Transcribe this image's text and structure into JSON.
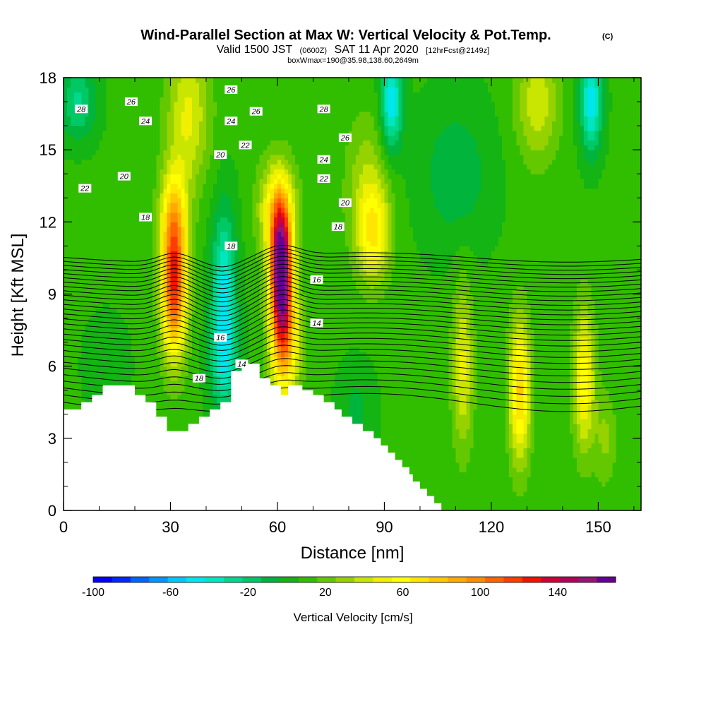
{
  "chart_data": {
    "type": "heatmap",
    "title": "Wind-Parallel Section at Max W: Vertical Velocity & Pot.Temp.",
    "title_mark": "(C)",
    "subtitle_parts": [
      "Valid 1500 JST",
      "(0600Z)",
      "SAT 11 Apr 2020",
      "[12hrFcst@2149z]"
    ],
    "subtitle2": "boxWmax=190@35.98,138.60,2649m",
    "xlabel": "Distance [nm]",
    "ylabel": "Height [Kft MSL]",
    "xlim": [
      0,
      162
    ],
    "ylim": [
      0,
      18
    ],
    "x_ticks": [
      0,
      30,
      60,
      90,
      120,
      150
    ],
    "x_tick_labels": [
      "0",
      "30",
      "60",
      "90",
      "120",
      "150"
    ],
    "y_ticks": [
      0,
      3,
      6,
      9,
      12,
      15,
      18
    ],
    "y_tick_labels": [
      "0",
      "3",
      "6",
      "9",
      "12",
      "15",
      "18"
    ],
    "grid": false,
    "colorbar": {
      "title": "Vertical Velocity [cm/s]",
      "min": -100,
      "max": 170,
      "step": 10,
      "tick_values": [
        -100,
        -60,
        -20,
        20,
        60,
        100,
        140
      ],
      "tick_labels": [
        "-100",
        "-60",
        "-20",
        "20",
        "60",
        "100",
        "140"
      ],
      "colors": [
        "#0000ff",
        "#0028ff",
        "#0064ff",
        "#0096ff",
        "#00c8ff",
        "#00e6f0",
        "#00e6c0",
        "#00d890",
        "#00c864",
        "#00b43c",
        "#14b414",
        "#32be00",
        "#64c800",
        "#96d200",
        "#c8e600",
        "#f0f000",
        "#ffff00",
        "#ffe600",
        "#ffc800",
        "#ffaa00",
        "#ff8c00",
        "#ff6400",
        "#ff3c00",
        "#f01400",
        "#d20032",
        "#b4005a",
        "#961478",
        "#640096"
      ]
    },
    "terrain": [
      [
        0,
        4.2
      ],
      [
        5,
        4.2
      ],
      [
        5,
        4.5
      ],
      [
        8,
        4.5
      ],
      [
        8,
        4.8
      ],
      [
        11,
        4.8
      ],
      [
        11,
        5.2
      ],
      [
        20,
        5.2
      ],
      [
        20,
        4.8
      ],
      [
        23,
        4.8
      ],
      [
        23,
        4.5
      ],
      [
        26,
        4.5
      ],
      [
        26,
        3.9
      ],
      [
        29,
        3.9
      ],
      [
        29,
        3.3
      ],
      [
        35,
        3.3
      ],
      [
        35,
        3.6
      ],
      [
        38,
        3.6
      ],
      [
        38,
        3.9
      ],
      [
        41,
        3.9
      ],
      [
        41,
        4.2
      ],
      [
        44,
        4.2
      ],
      [
        44,
        4.5
      ],
      [
        47,
        4.5
      ],
      [
        47,
        5.8
      ],
      [
        50,
        5.8
      ],
      [
        50,
        6.1
      ],
      [
        55,
        6.1
      ],
      [
        55,
        5.5
      ],
      [
        58,
        5.5
      ],
      [
        58,
        5.2
      ],
      [
        61,
        5.2
      ],
      [
        61,
        4.8
      ],
      [
        63,
        4.8
      ],
      [
        63,
        5.2
      ],
      [
        67,
        5.2
      ],
      [
        67,
        5.0
      ],
      [
        70,
        5.0
      ],
      [
        70,
        4.8
      ],
      [
        73,
        4.8
      ],
      [
        73,
        4.5
      ],
      [
        76,
        4.5
      ],
      [
        76,
        4.2
      ],
      [
        78,
        4.2
      ],
      [
        78,
        3.9
      ],
      [
        81,
        3.9
      ],
      [
        81,
        3.6
      ],
      [
        84,
        3.6
      ],
      [
        84,
        3.3
      ],
      [
        87,
        3.3
      ],
      [
        87,
        3.0
      ],
      [
        89,
        3.0
      ],
      [
        89,
        2.7
      ],
      [
        91,
        2.7
      ],
      [
        91,
        2.4
      ],
      [
        93,
        2.4
      ],
      [
        93,
        2.1
      ],
      [
        95,
        2.1
      ],
      [
        95,
        1.8
      ],
      [
        97,
        1.8
      ],
      [
        97,
        1.5
      ],
      [
        98,
        1.5
      ],
      [
        98,
        1.2
      ],
      [
        100,
        1.2
      ],
      [
        100,
        0.9
      ],
      [
        102,
        0.9
      ],
      [
        102,
        0.6
      ],
      [
        104,
        0.6
      ],
      [
        104,
        0.3
      ],
      [
        106,
        0.3
      ],
      [
        106,
        0
      ],
      [
        0,
        0
      ]
    ],
    "series": [
      {
        "name": "w_cells",
        "values": [
          [
            31,
            9.5,
            3.5,
            3.0,
            120
          ],
          [
            31,
            12.5,
            4.0,
            2.0,
            40
          ],
          [
            61,
            10.0,
            3.0,
            2.5,
            165
          ],
          [
            60,
            12.5,
            5.0,
            2.0,
            60
          ],
          [
            62,
            7.0,
            4.0,
            2.5,
            80
          ],
          [
            87,
            11.5,
            4.5,
            2.0,
            50
          ],
          [
            85,
            13.5,
            6.0,
            3.0,
            25
          ],
          [
            112,
            6.0,
            3.0,
            3.5,
            40
          ],
          [
            128,
            5.0,
            3.0,
            3.0,
            70
          ],
          [
            146,
            5.5,
            3.0,
            3.0,
            55
          ],
          [
            152,
            3.0,
            3.0,
            2.0,
            20
          ],
          [
            35,
            16.5,
            6.0,
            3.0,
            40
          ],
          [
            133,
            17.0,
            6.0,
            2.5,
            35
          ],
          [
            45,
            9.0,
            3.5,
            3.5,
            -55
          ],
          [
            45,
            6.0,
            4.0,
            2.0,
            -30
          ],
          [
            92,
            17.0,
            3.0,
            2.0,
            -60
          ],
          [
            148,
            17.0,
            3.0,
            2.0,
            -60
          ],
          [
            4,
            17.0,
            5.0,
            1.5,
            -35
          ],
          [
            82,
            4.0,
            5.0,
            2.0,
            -15
          ],
          [
            12,
            6.0,
            6.0,
            2.0,
            -10
          ],
          [
            110,
            14.0,
            10.0,
            3.0,
            -20
          ]
        ]
      },
      {
        "name": "theta_levels",
        "values": [
          14,
          14.5,
          15,
          15.5,
          16,
          16.5,
          17,
          17.5,
          18,
          18.5,
          19,
          19.5,
          20,
          20.5,
          21,
          21.5,
          22,
          22.5,
          23,
          23.5,
          24,
          24.5,
          25,
          25.5,
          26,
          26.5,
          27,
          27.5,
          28
        ]
      }
    ],
    "contour_labels": [
      {
        "text": "28",
        "x": 5,
        "y": 16.7
      },
      {
        "text": "26",
        "x": 19,
        "y": 17.0
      },
      {
        "text": "24",
        "x": 23,
        "y": 16.2
      },
      {
        "text": "22",
        "x": 6,
        "y": 13.4
      },
      {
        "text": "20",
        "x": 17,
        "y": 13.9
      },
      {
        "text": "18",
        "x": 23,
        "y": 12.2
      },
      {
        "text": "26",
        "x": 47,
        "y": 17.5
      },
      {
        "text": "26",
        "x": 54,
        "y": 16.6
      },
      {
        "text": "24",
        "x": 47,
        "y": 16.2
      },
      {
        "text": "22",
        "x": 51,
        "y": 15.2
      },
      {
        "text": "20",
        "x": 44,
        "y": 14.8
      },
      {
        "text": "18",
        "x": 47,
        "y": 11.0
      },
      {
        "text": "16",
        "x": 44,
        "y": 7.2
      },
      {
        "text": "14",
        "x": 50,
        "y": 6.1
      },
      {
        "text": "18",
        "x": 38,
        "y": 5.5
      },
      {
        "text": "28",
        "x": 73,
        "y": 16.7
      },
      {
        "text": "26",
        "x": 79,
        "y": 15.5
      },
      {
        "text": "24",
        "x": 73,
        "y": 14.6
      },
      {
        "text": "22",
        "x": 73,
        "y": 13.8
      },
      {
        "text": "20",
        "x": 79,
        "y": 12.8
      },
      {
        "text": "18",
        "x": 77,
        "y": 11.8
      },
      {
        "text": "16",
        "x": 71,
        "y": 9.6
      },
      {
        "text": "14",
        "x": 71,
        "y": 7.8
      }
    ]
  }
}
